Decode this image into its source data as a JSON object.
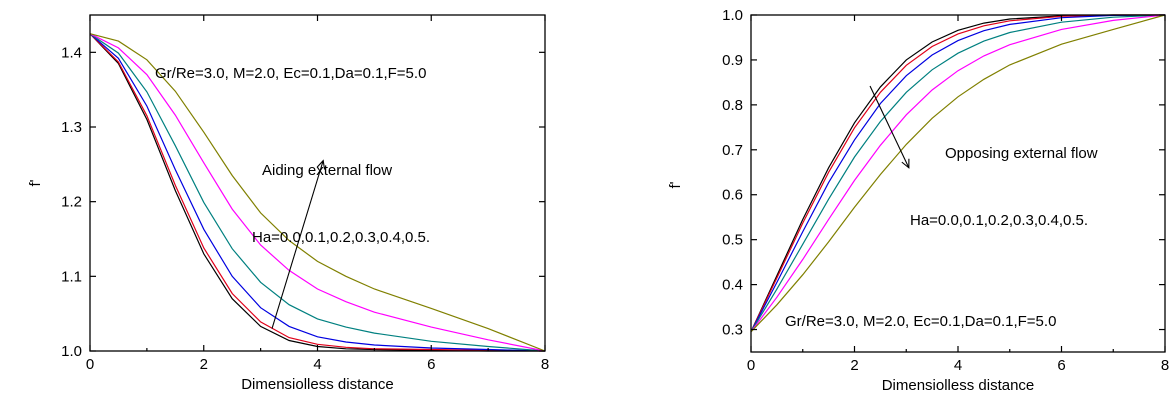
{
  "colors": [
    "#000000",
    "#e0001a",
    "#0000e0",
    "#008080",
    "#ff00ff",
    "#808000"
  ],
  "chart_data": [
    {
      "type": "line",
      "title": "",
      "xlabel": "Dimensiolless distance",
      "ylabel": "f'",
      "xlim": [
        0,
        8
      ],
      "ylim": [
        1.0,
        1.45
      ],
      "xticks": [
        0,
        2,
        4,
        6,
        8
      ],
      "yticks": [
        1.0,
        1.1,
        1.2,
        1.3,
        1.4
      ],
      "ytick_labels": [
        "1.0",
        "1.1",
        "1.2",
        "1.3",
        "1.4"
      ],
      "grid": false,
      "annotations": {
        "params": "Gr/Re=3.0, M=2.0, Ec=0.1,Da=0.1,F=5.0",
        "flow": "Aiding external flow",
        "ha": "Ha=0.0,0.1,0.2,0.3,0.4,0.5."
      },
      "arrow": {
        "from": [
          3.2,
          1.03
        ],
        "to": [
          4.1,
          1.255
        ]
      },
      "series": [
        {
          "x": [
            0,
            0.5,
            1,
            1.5,
            2,
            2.5,
            3,
            3.5,
            4,
            4.5,
            5,
            6,
            7,
            8
          ],
          "values": [
            1.425,
            1.385,
            1.31,
            1.215,
            1.13,
            1.07,
            1.033,
            1.014,
            1.006,
            1.003,
            1.002,
            1.001,
            1.0,
            1.0
          ]
        },
        {
          "x": [
            0,
            0.5,
            1,
            1.5,
            2,
            2.5,
            3,
            3.5,
            4,
            4.5,
            5,
            6,
            7,
            8
          ],
          "values": [
            1.425,
            1.387,
            1.315,
            1.222,
            1.138,
            1.077,
            1.039,
            1.018,
            1.009,
            1.005,
            1.003,
            1.002,
            1.001,
            1.0
          ]
        },
        {
          "x": [
            0,
            0.5,
            1,
            1.5,
            2,
            2.5,
            3,
            3.5,
            4,
            4.5,
            5,
            6,
            7,
            8
          ],
          "values": [
            1.425,
            1.392,
            1.328,
            1.243,
            1.163,
            1.1,
            1.058,
            1.033,
            1.019,
            1.012,
            1.008,
            1.004,
            1.002,
            1.0
          ]
        },
        {
          "x": [
            0,
            0.5,
            1,
            1.5,
            2,
            2.5,
            3,
            3.5,
            4,
            4.5,
            5,
            6,
            7,
            8
          ],
          "values": [
            1.425,
            1.399,
            1.347,
            1.275,
            1.199,
            1.137,
            1.092,
            1.062,
            1.043,
            1.032,
            1.024,
            1.013,
            1.006,
            1.0
          ]
        },
        {
          "x": [
            0,
            0.5,
            1,
            1.5,
            2,
            2.5,
            3,
            3.5,
            4,
            4.5,
            5,
            6,
            7,
            8
          ],
          "values": [
            1.425,
            1.406,
            1.37,
            1.316,
            1.252,
            1.19,
            1.142,
            1.108,
            1.083,
            1.066,
            1.052,
            1.032,
            1.015,
            1.0
          ]
        },
        {
          "x": [
            0,
            0.5,
            1,
            1.5,
            2,
            2.5,
            3,
            3.5,
            4,
            4.5,
            5,
            6,
            7,
            8
          ],
          "values": [
            1.425,
            1.415,
            1.39,
            1.348,
            1.293,
            1.235,
            1.185,
            1.148,
            1.12,
            1.1,
            1.083,
            1.057,
            1.03,
            1.0
          ]
        }
      ]
    },
    {
      "type": "line",
      "title": "",
      "xlabel": "Dimensiolless distance",
      "ylabel": "f'",
      "xlim": [
        0,
        8
      ],
      "ylim": [
        0.25,
        1.0
      ],
      "xticks": [
        0,
        2,
        4,
        6,
        8
      ],
      "yticks": [
        0.3,
        0.4,
        0.5,
        0.6,
        0.7,
        0.8,
        0.9,
        1.0
      ],
      "ytick_labels": [
        "0.3",
        "0.4",
        "0.5",
        "0.6",
        "0.7",
        "0.8",
        "0.9",
        "1.0"
      ],
      "grid": false,
      "annotations": {
        "params": "Gr/Re=3.0, M=2.0, Ec=0.1,Da=0.1,F=5.0",
        "flow": "Opposing external flow",
        "ha": "Ha=0.0,0.1,0.2,0.3,0.4,0.5."
      },
      "arrow": {
        "from": [
          2.3,
          0.842
        ],
        "to": [
          3.05,
          0.66
        ]
      },
      "series": [
        {
          "x": [
            0,
            0.5,
            1,
            1.5,
            2,
            2.5,
            3,
            3.5,
            4,
            4.5,
            5,
            6,
            7,
            8
          ],
          "values": [
            0.295,
            0.42,
            0.545,
            0.66,
            0.76,
            0.84,
            0.9,
            0.94,
            0.966,
            0.982,
            0.991,
            0.998,
            1.0,
            1.0
          ]
        },
        {
          "x": [
            0,
            0.5,
            1,
            1.5,
            2,
            2.5,
            3,
            3.5,
            4,
            4.5,
            5,
            6,
            7,
            8
          ],
          "values": [
            0.295,
            0.415,
            0.537,
            0.65,
            0.749,
            0.828,
            0.888,
            0.93,
            0.958,
            0.976,
            0.987,
            0.997,
            1.0,
            1.0
          ]
        },
        {
          "x": [
            0,
            0.5,
            1,
            1.5,
            2,
            2.5,
            3,
            3.5,
            4,
            4.5,
            5,
            6,
            7,
            8
          ],
          "values": [
            0.295,
            0.405,
            0.518,
            0.627,
            0.722,
            0.803,
            0.865,
            0.911,
            0.943,
            0.965,
            0.979,
            0.994,
            0.999,
            1.0
          ]
        },
        {
          "x": [
            0,
            0.5,
            1,
            1.5,
            2,
            2.5,
            3,
            3.5,
            4,
            4.5,
            5,
            6,
            7,
            8
          ],
          "values": [
            0.295,
            0.39,
            0.49,
            0.59,
            0.684,
            0.763,
            0.828,
            0.878,
            0.915,
            0.942,
            0.961,
            0.984,
            0.995,
            1.0
          ]
        },
        {
          "x": [
            0,
            0.5,
            1,
            1.5,
            2,
            2.5,
            3,
            3.5,
            4,
            4.5,
            5,
            6,
            7,
            8
          ],
          "values": [
            0.295,
            0.372,
            0.456,
            0.545,
            0.632,
            0.71,
            0.778,
            0.833,
            0.876,
            0.909,
            0.934,
            0.968,
            0.988,
            1.0
          ]
        },
        {
          "x": [
            0,
            0.5,
            1,
            1.5,
            2,
            2.5,
            3,
            3.5,
            4,
            4.5,
            5,
            6,
            7,
            8
          ],
          "values": [
            0.295,
            0.355,
            0.422,
            0.495,
            0.572,
            0.645,
            0.712,
            0.77,
            0.818,
            0.857,
            0.889,
            0.935,
            0.968,
            1.0
          ]
        }
      ]
    }
  ]
}
